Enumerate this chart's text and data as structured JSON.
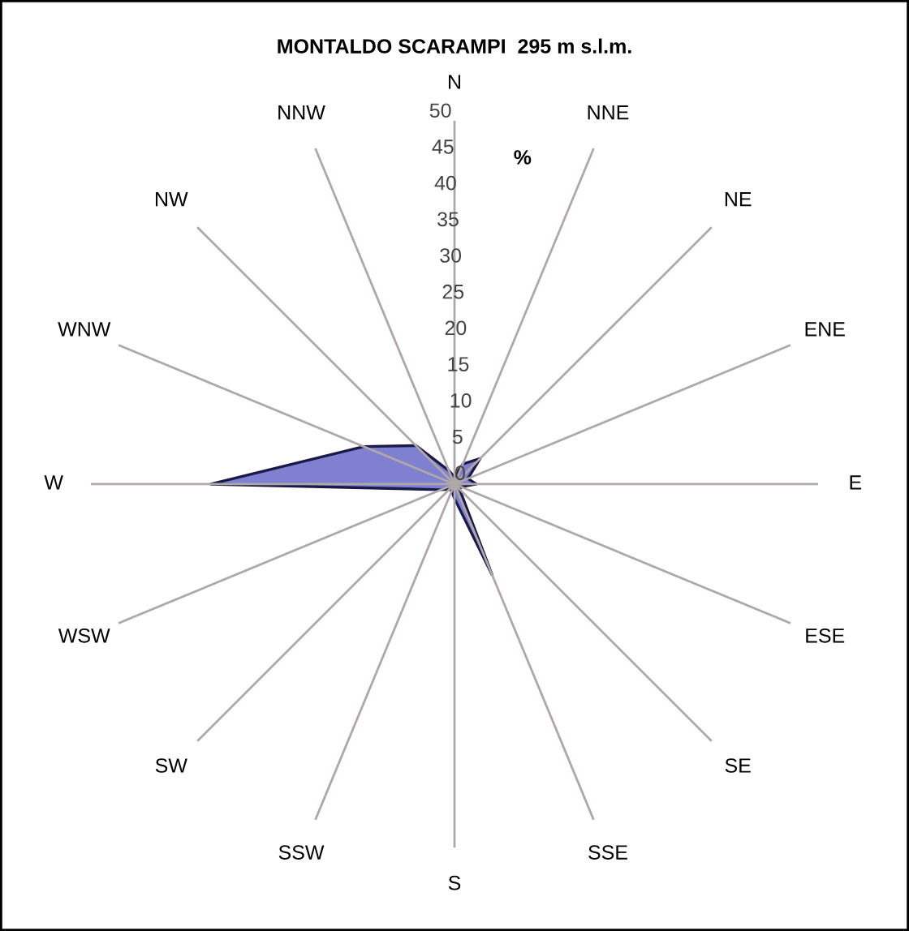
{
  "chart_data": {
    "type": "radar",
    "title": "MONTALDO SCARAMPI  295 m s.l.m.",
    "categories": [
      "N",
      "NNE",
      "NE",
      "ENE",
      "E",
      "ESE",
      "SE",
      "SSE",
      "S",
      "SSW",
      "SW",
      "WSW",
      "W",
      "WNW",
      "NW",
      "NNW"
    ],
    "series": [
      {
        "color": "#8080d0",
        "values": [
          1,
          3,
          5,
          2,
          3,
          1,
          1,
          13.5,
          2,
          1,
          1,
          2,
          33.5,
          13.5,
          7.5,
          2
        ]
      }
    ],
    "ylim": [
      0,
      50
    ],
    "yticks": [
      0,
      5,
      10,
      15,
      20,
      25,
      30,
      35,
      40,
      45,
      50
    ],
    "annotations": [
      "%"
    ],
    "grid": "x"
  }
}
